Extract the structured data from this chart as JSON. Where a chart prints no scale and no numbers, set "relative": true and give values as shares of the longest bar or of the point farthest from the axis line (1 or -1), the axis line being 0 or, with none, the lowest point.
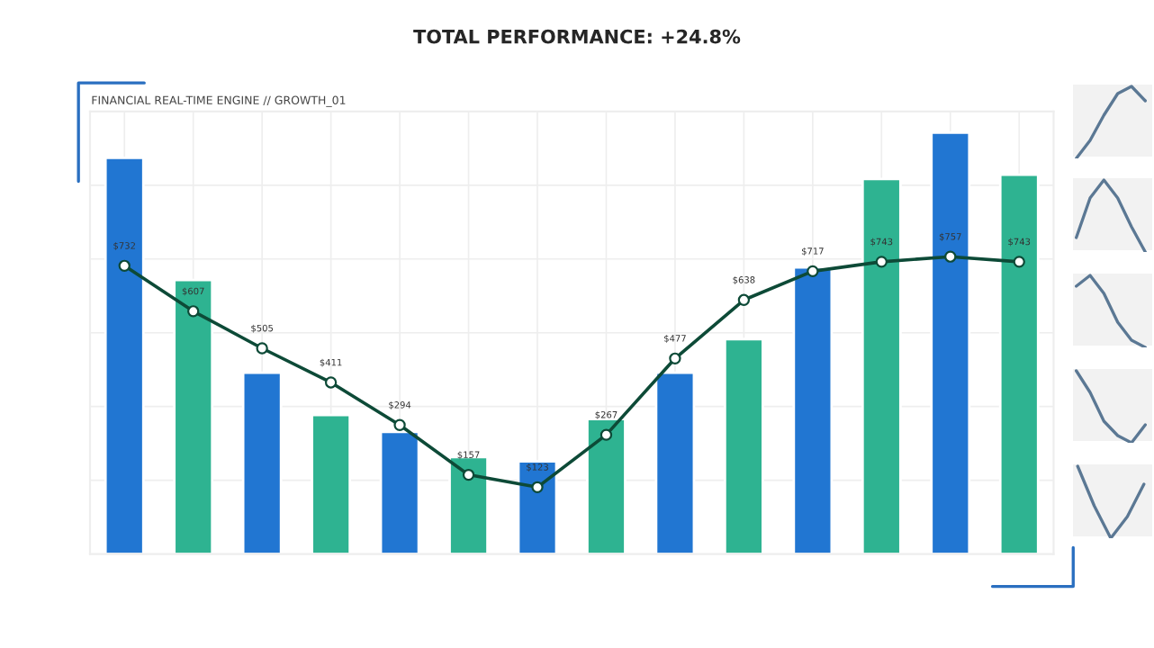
{
  "chart_data": [
    {
      "type": "bar",
      "title": "TOTAL PERFORMANCE: +24.8%",
      "subtitle": "FINANCIAL REAL-TIME ENGINE // GROWTH_01",
      "relative": true,
      "grid": true,
      "categories": [
        null,
        null,
        null,
        null,
        null,
        null,
        null,
        null,
        null,
        null,
        null,
        null,
        null,
        null
      ],
      "colors": [
        "#2176d2",
        "#2eb391",
        "#2176d2",
        "#2eb391",
        "#2176d2",
        "#2eb391",
        "#2176d2",
        "#2eb391",
        "#2176d2",
        "#2eb391",
        "#2176d2",
        "#2eb391",
        "#2176d2",
        "#2eb391"
      ],
      "values": [
        0.94,
        0.65,
        0.43,
        0.33,
        0.29,
        0.23,
        0.22,
        0.32,
        0.43,
        0.51,
        0.68,
        0.89,
        1.0,
        0.9
      ]
    },
    {
      "type": "line",
      "marker": "circle",
      "color": "#0d4a37",
      "categories": [
        null,
        null,
        null,
        null,
        null,
        null,
        null,
        null,
        null,
        null,
        null,
        null,
        null,
        null
      ],
      "values": [
        732,
        607,
        505,
        411,
        294,
        157,
        123,
        267,
        477,
        638,
        717,
        743,
        757,
        743
      ],
      "value_labels": [
        "$732",
        "$607",
        "$505",
        "$411",
        "$294",
        "$157",
        "$123",
        "$267",
        "$477",
        "$638",
        "$717",
        "$743",
        "$757",
        "$743"
      ]
    },
    {
      "type": "line",
      "relative": true,
      "categories": [
        null,
        null,
        null,
        null,
        null,
        null
      ],
      "color": "#5b7894",
      "values": [
        0,
        0.25,
        0.6,
        0.9,
        1.0,
        0.8
      ]
    },
    {
      "type": "line",
      "relative": true,
      "categories": [
        null,
        null,
        null,
        null,
        null,
        null
      ],
      "color": "#5b7894",
      "values": [
        0.2,
        0.75,
        1.0,
        0.75,
        0.35,
        0
      ]
    },
    {
      "type": "line",
      "relative": true,
      "categories": [
        null,
        null,
        null,
        null,
        null,
        null
      ],
      "color": "#5b7894",
      "values": [
        0.85,
        1.0,
        0.75,
        0.35,
        0.1,
        0
      ]
    },
    {
      "type": "line",
      "relative": true,
      "categories": [
        null,
        null,
        null,
        null,
        null,
        null
      ],
      "color": "#5b7894",
      "values": [
        1.0,
        0.7,
        0.3,
        0.1,
        0,
        0.25
      ]
    },
    {
      "type": "line",
      "relative": true,
      "categories": [
        null,
        null,
        null,
        null,
        null
      ],
      "color": "#5b7894",
      "values": [
        1.0,
        0.45,
        0,
        0.3,
        0.75
      ]
    }
  ]
}
